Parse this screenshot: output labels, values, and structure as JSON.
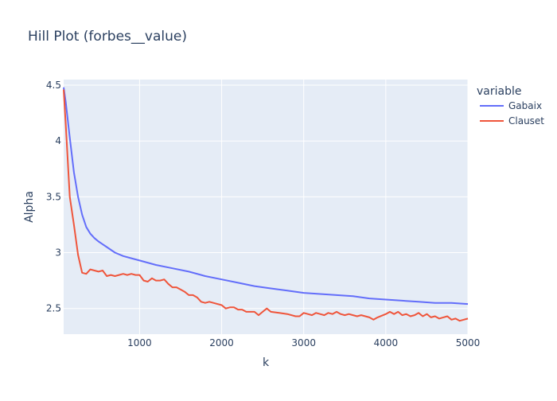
{
  "chart_data": {
    "type": "line",
    "title": "Hill Plot (forbes__value)",
    "xlabel": "k",
    "ylabel": "Alpha",
    "xlim": [
      75,
      5000
    ],
    "ylim": [
      2.27,
      4.55
    ],
    "x_ticks": [
      1000,
      2000,
      3000,
      4000,
      5000
    ],
    "y_ticks": [
      2.5,
      3,
      3.5,
      4,
      4.5
    ],
    "grid": true,
    "legend": {
      "title": "variable",
      "position": "right"
    },
    "plot_bg": "#E5ECF6",
    "series": [
      {
        "name": "Gabaix",
        "color": "#636EFA",
        "points": [
          [
            75,
            4.48
          ],
          [
            100,
            4.35
          ],
          [
            150,
            4.03
          ],
          [
            200,
            3.72
          ],
          [
            250,
            3.5
          ],
          [
            300,
            3.34
          ],
          [
            350,
            3.23
          ],
          [
            400,
            3.17
          ],
          [
            450,
            3.13
          ],
          [
            500,
            3.1
          ],
          [
            600,
            3.05
          ],
          [
            700,
            3.0
          ],
          [
            800,
            2.97
          ],
          [
            900,
            2.95
          ],
          [
            1000,
            2.93
          ],
          [
            1200,
            2.89
          ],
          [
            1400,
            2.86
          ],
          [
            1600,
            2.83
          ],
          [
            1800,
            2.79
          ],
          [
            2000,
            2.76
          ],
          [
            2200,
            2.73
          ],
          [
            2400,
            2.7
          ],
          [
            2600,
            2.68
          ],
          [
            2800,
            2.66
          ],
          [
            3000,
            2.64
          ],
          [
            3200,
            2.63
          ],
          [
            3400,
            2.62
          ],
          [
            3600,
            2.61
          ],
          [
            3800,
            2.59
          ],
          [
            4000,
            2.58
          ],
          [
            4200,
            2.57
          ],
          [
            4400,
            2.56
          ],
          [
            4600,
            2.55
          ],
          [
            4800,
            2.55
          ],
          [
            5000,
            2.54
          ]
        ]
      },
      {
        "name": "Clauset",
        "color": "#EF553B",
        "points": [
          [
            75,
            4.46
          ],
          [
            100,
            4.15
          ],
          [
            150,
            3.5
          ],
          [
            200,
            3.25
          ],
          [
            250,
            2.98
          ],
          [
            300,
            2.82
          ],
          [
            350,
            2.81
          ],
          [
            400,
            2.85
          ],
          [
            450,
            2.84
          ],
          [
            500,
            2.83
          ],
          [
            550,
            2.84
          ],
          [
            600,
            2.79
          ],
          [
            650,
            2.8
          ],
          [
            700,
            2.79
          ],
          [
            750,
            2.8
          ],
          [
            800,
            2.81
          ],
          [
            850,
            2.8
          ],
          [
            900,
            2.81
          ],
          [
            950,
            2.8
          ],
          [
            1000,
            2.8
          ],
          [
            1050,
            2.75
          ],
          [
            1100,
            2.74
          ],
          [
            1150,
            2.77
          ],
          [
            1200,
            2.75
          ],
          [
            1250,
            2.75
          ],
          [
            1300,
            2.76
          ],
          [
            1350,
            2.72
          ],
          [
            1400,
            2.69
          ],
          [
            1450,
            2.69
          ],
          [
            1500,
            2.67
          ],
          [
            1550,
            2.65
          ],
          [
            1600,
            2.62
          ],
          [
            1650,
            2.62
          ],
          [
            1700,
            2.6
          ],
          [
            1750,
            2.56
          ],
          [
            1800,
            2.55
          ],
          [
            1850,
            2.56
          ],
          [
            1900,
            2.55
          ],
          [
            2000,
            2.53
          ],
          [
            2050,
            2.5
          ],
          [
            2100,
            2.51
          ],
          [
            2150,
            2.51
          ],
          [
            2200,
            2.49
          ],
          [
            2250,
            2.49
          ],
          [
            2300,
            2.47
          ],
          [
            2350,
            2.47
          ],
          [
            2400,
            2.47
          ],
          [
            2450,
            2.44
          ],
          [
            2500,
            2.47
          ],
          [
            2550,
            2.5
          ],
          [
            2600,
            2.47
          ],
          [
            2700,
            2.46
          ],
          [
            2800,
            2.45
          ],
          [
            2900,
            2.43
          ],
          [
            2950,
            2.43
          ],
          [
            3000,
            2.46
          ],
          [
            3050,
            2.45
          ],
          [
            3100,
            2.44
          ],
          [
            3150,
            2.46
          ],
          [
            3200,
            2.45
          ],
          [
            3250,
            2.44
          ],
          [
            3300,
            2.46
          ],
          [
            3350,
            2.45
          ],
          [
            3400,
            2.47
          ],
          [
            3450,
            2.45
          ],
          [
            3500,
            2.44
          ],
          [
            3550,
            2.45
          ],
          [
            3600,
            2.44
          ],
          [
            3650,
            2.43
          ],
          [
            3700,
            2.44
          ],
          [
            3750,
            2.43
          ],
          [
            3800,
            2.42
          ],
          [
            3850,
            2.4
          ],
          [
            3900,
            2.42
          ],
          [
            4000,
            2.45
          ],
          [
            4050,
            2.47
          ],
          [
            4100,
            2.45
          ],
          [
            4150,
            2.47
          ],
          [
            4200,
            2.44
          ],
          [
            4250,
            2.45
          ],
          [
            4300,
            2.43
          ],
          [
            4350,
            2.44
          ],
          [
            4400,
            2.46
          ],
          [
            4450,
            2.43
          ],
          [
            4500,
            2.45
          ],
          [
            4550,
            2.42
          ],
          [
            4600,
            2.43
          ],
          [
            4650,
            2.41
          ],
          [
            4700,
            2.42
          ],
          [
            4750,
            2.43
          ],
          [
            4800,
            2.4
          ],
          [
            4850,
            2.41
          ],
          [
            4900,
            2.39
          ],
          [
            4950,
            2.4
          ],
          [
            5000,
            2.41
          ]
        ]
      }
    ]
  }
}
